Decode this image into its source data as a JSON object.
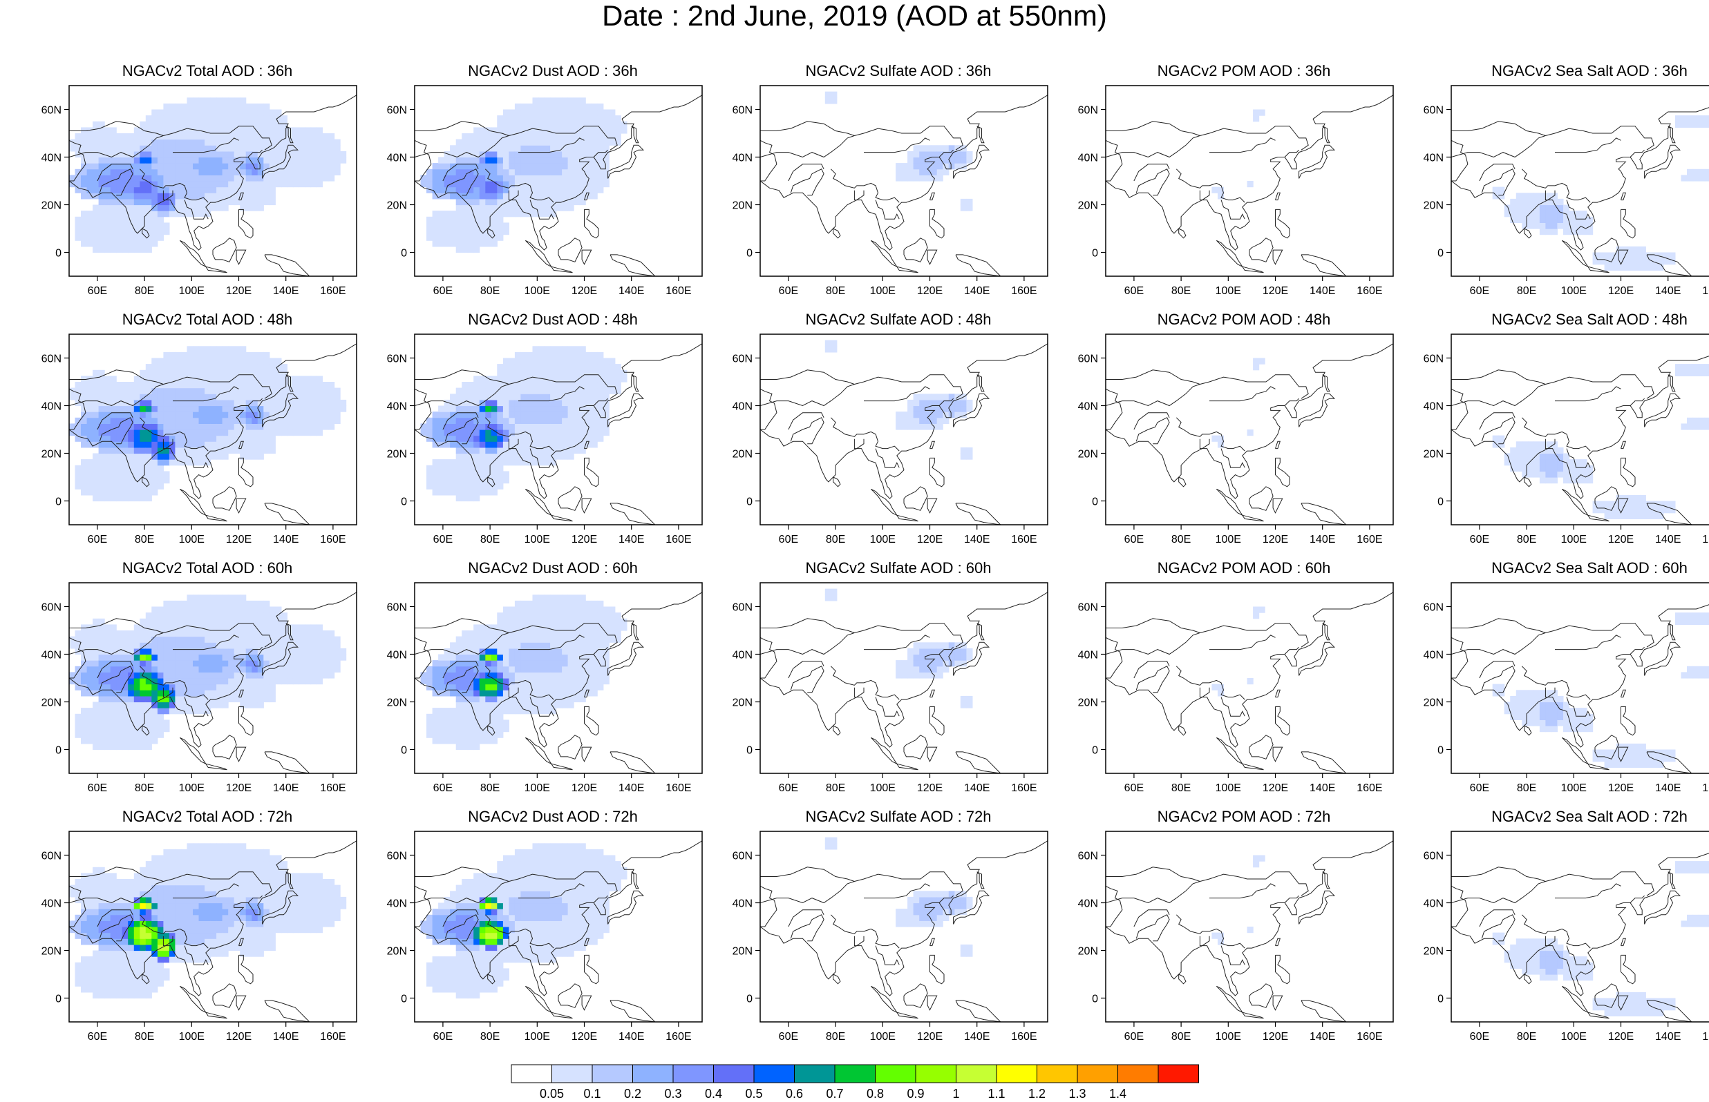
{
  "title": "Date : 2nd June, 2019 (AOD at 550nm)",
  "x_ticks": [
    "60E",
    "80E",
    "100E",
    "120E",
    "140E",
    "160E"
  ],
  "y_ticks": [
    "60N",
    "40N",
    "20N",
    "0"
  ],
  "panels": [
    {
      "title": "NGACv2 Total AOD : 36h",
      "species": "total",
      "forecast_hour": 36
    },
    {
      "title": "NGACv2 Dust AOD : 36h",
      "species": "dust",
      "forecast_hour": 36
    },
    {
      "title": "NGACv2 Sulfate AOD : 36h",
      "species": "sulfate",
      "forecast_hour": 36
    },
    {
      "title": "NGACv2 POM AOD : 36h",
      "species": "pom",
      "forecast_hour": 36
    },
    {
      "title": "NGACv2 Sea Salt AOD : 36h",
      "species": "seasalt",
      "forecast_hour": 36
    },
    {
      "title": "NGACv2 Total AOD : 48h",
      "species": "total",
      "forecast_hour": 48
    },
    {
      "title": "NGACv2 Dust AOD : 48h",
      "species": "dust",
      "forecast_hour": 48
    },
    {
      "title": "NGACv2 Sulfate AOD : 48h",
      "species": "sulfate",
      "forecast_hour": 48
    },
    {
      "title": "NGACv2 POM AOD : 48h",
      "species": "pom",
      "forecast_hour": 48
    },
    {
      "title": "NGACv2 Sea Salt AOD : 48h",
      "species": "seasalt",
      "forecast_hour": 48
    },
    {
      "title": "NGACv2 Total AOD : 60h",
      "species": "total",
      "forecast_hour": 60
    },
    {
      "title": "NGACv2 Dust AOD : 60h",
      "species": "dust",
      "forecast_hour": 60
    },
    {
      "title": "NGACv2 Sulfate AOD : 60h",
      "species": "sulfate",
      "forecast_hour": 60
    },
    {
      "title": "NGACv2 POM AOD : 60h",
      "species": "pom",
      "forecast_hour": 60
    },
    {
      "title": "NGACv2 Sea Salt AOD : 60h",
      "species": "seasalt",
      "forecast_hour": 60
    },
    {
      "title": "NGACv2 Total AOD : 72h",
      "species": "total",
      "forecast_hour": 72
    },
    {
      "title": "NGACv2 Dust AOD : 72h",
      "species": "dust",
      "forecast_hour": 72
    },
    {
      "title": "NGACv2 Sulfate AOD : 72h",
      "species": "sulfate",
      "forecast_hour": 72
    },
    {
      "title": "NGACv2 POM AOD : 72h",
      "species": "pom",
      "forecast_hour": 72
    },
    {
      "title": "NGACv2 Sea Salt  AOD : 72h",
      "species": "seasalt",
      "forecast_hour": 72
    }
  ],
  "colorbar": {
    "labels": [
      "0.05",
      "0.1",
      "0.2",
      "0.3",
      "0.4",
      "0.5",
      "0.6",
      "0.7",
      "0.8",
      "0.9",
      "1",
      "1.1",
      "1.2",
      "1.3",
      "1.4"
    ],
    "colors": [
      "#ffffff",
      "#d6e2ff",
      "#b5c9ff",
      "#8eb2ff",
      "#7f96ff",
      "#6370f8",
      "#0063ff",
      "#009696",
      "#00c633",
      "#63ff00",
      "#96ff00",
      "#c6ff33",
      "#ffff00",
      "#ffc600",
      "#ffa000",
      "#ff7c00",
      "#ff1900"
    ]
  }
}
